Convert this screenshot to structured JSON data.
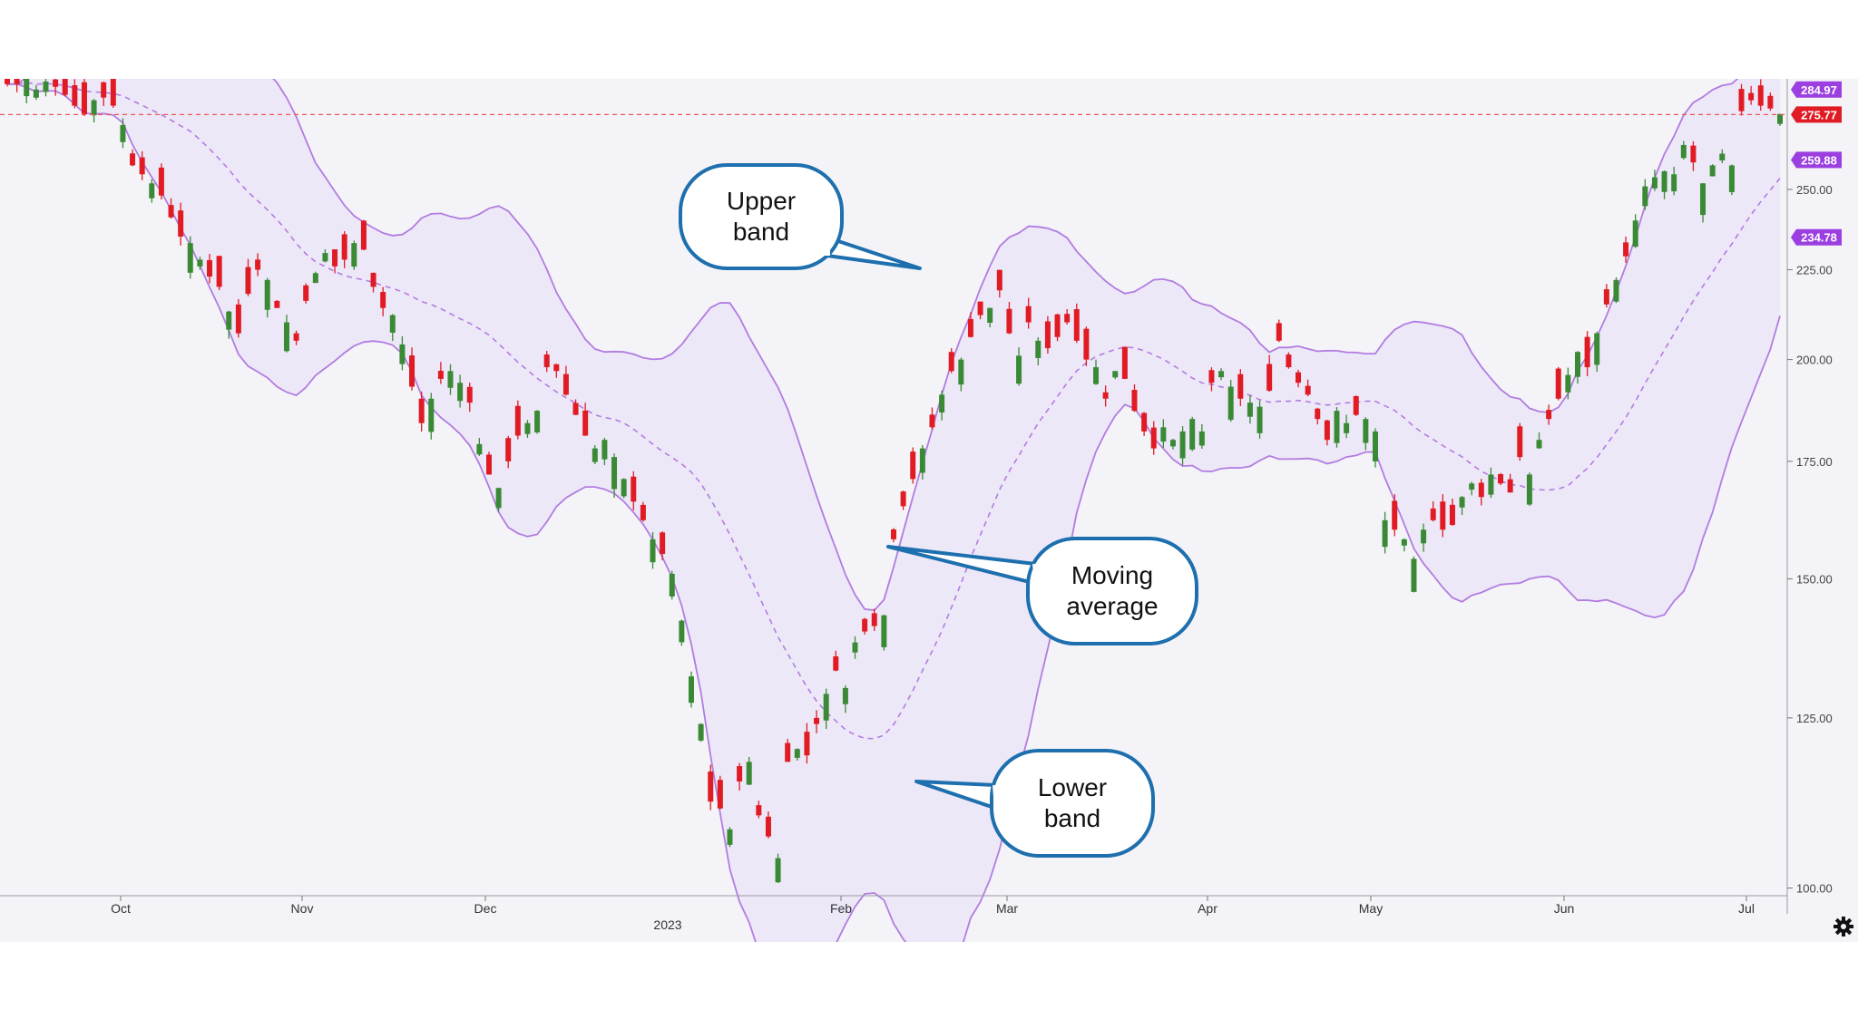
{
  "chart_data": {
    "type": "candlestick",
    "title": "",
    "xlabel": "",
    "ylabel": "",
    "ylim": [
      99,
      289
    ],
    "y_scale": "log",
    "grid": false,
    "y_ticks": [
      "100.00",
      "125.00",
      "150.00",
      "175.00",
      "200.00",
      "225.00",
      "250.00"
    ],
    "x_labels": [
      "Oct",
      "Nov",
      "Dec",
      "2023",
      "Feb",
      "Mar",
      "Apr",
      "May",
      "Jun",
      "Jul"
    ],
    "price_tags": [
      {
        "label": "284.97",
        "value": 284.97,
        "color": "#9b3fe0"
      },
      {
        "label": "275.77",
        "value": 275.77,
        "color": "#e01b24"
      },
      {
        "label": "259.88",
        "value": 259.88,
        "color": "#9b3fe0"
      },
      {
        "label": "234.78",
        "value": 234.78,
        "color": "#9b3fe0"
      }
    ],
    "last_price": 275.77,
    "colors": {
      "up": "#3a8a35",
      "down": "#e01b24",
      "band": "#b27ce0",
      "band_fill": "#ebe4f8",
      "ma": "#b27ce0"
    },
    "candle_closes": [
      287,
      287,
      289,
      285,
      288,
      286,
      283,
      279,
      276,
      281,
      282,
      279,
      272,
      258,
      255,
      252,
      248,
      241,
      235,
      233,
      228,
      223,
      220,
      213,
      207,
      218,
      225,
      222,
      214,
      210,
      205,
      216,
      224,
      230,
      226,
      228,
      233,
      231,
      220,
      214,
      212,
      204,
      193,
      184,
      190,
      195,
      197,
      194,
      189,
      179,
      172,
      169,
      175,
      181,
      184,
      187,
      198,
      197,
      191,
      186,
      181,
      178,
      180,
      176,
      171,
      166,
      162,
      158,
      155,
      151,
      142,
      132,
      124,
      112,
      111,
      108,
      115,
      118,
      110,
      107,
      104,
      118,
      120,
      119,
      124,
      129,
      133,
      130,
      138,
      140,
      141,
      143,
      158,
      165,
      171,
      178,
      183,
      191,
      197,
      200,
      206,
      212,
      214,
      219,
      207,
      201,
      210,
      205,
      203,
      206,
      210,
      205,
      200,
      198,
      190,
      197,
      195,
      187,
      182,
      178,
      183,
      180,
      182,
      185,
      182,
      194,
      197,
      193,
      190,
      189,
      188,
      192,
      205,
      198,
      194,
      191,
      185,
      180,
      187,
      184,
      186,
      185,
      182,
      162,
      160,
      158,
      154,
      160,
      162,
      160,
      161,
      167,
      170,
      167,
      172,
      170,
      168,
      176,
      172,
      180,
      185,
      190,
      196,
      202,
      198,
      207,
      215,
      222,
      229,
      240,
      251,
      254,
      256,
      255,
      265,
      259,
      252,
      258,
      262,
      258,
      277,
      281,
      279,
      278,
      276
    ],
    "legend": []
  },
  "ui": {
    "settings_icon": "gear-icon"
  }
}
